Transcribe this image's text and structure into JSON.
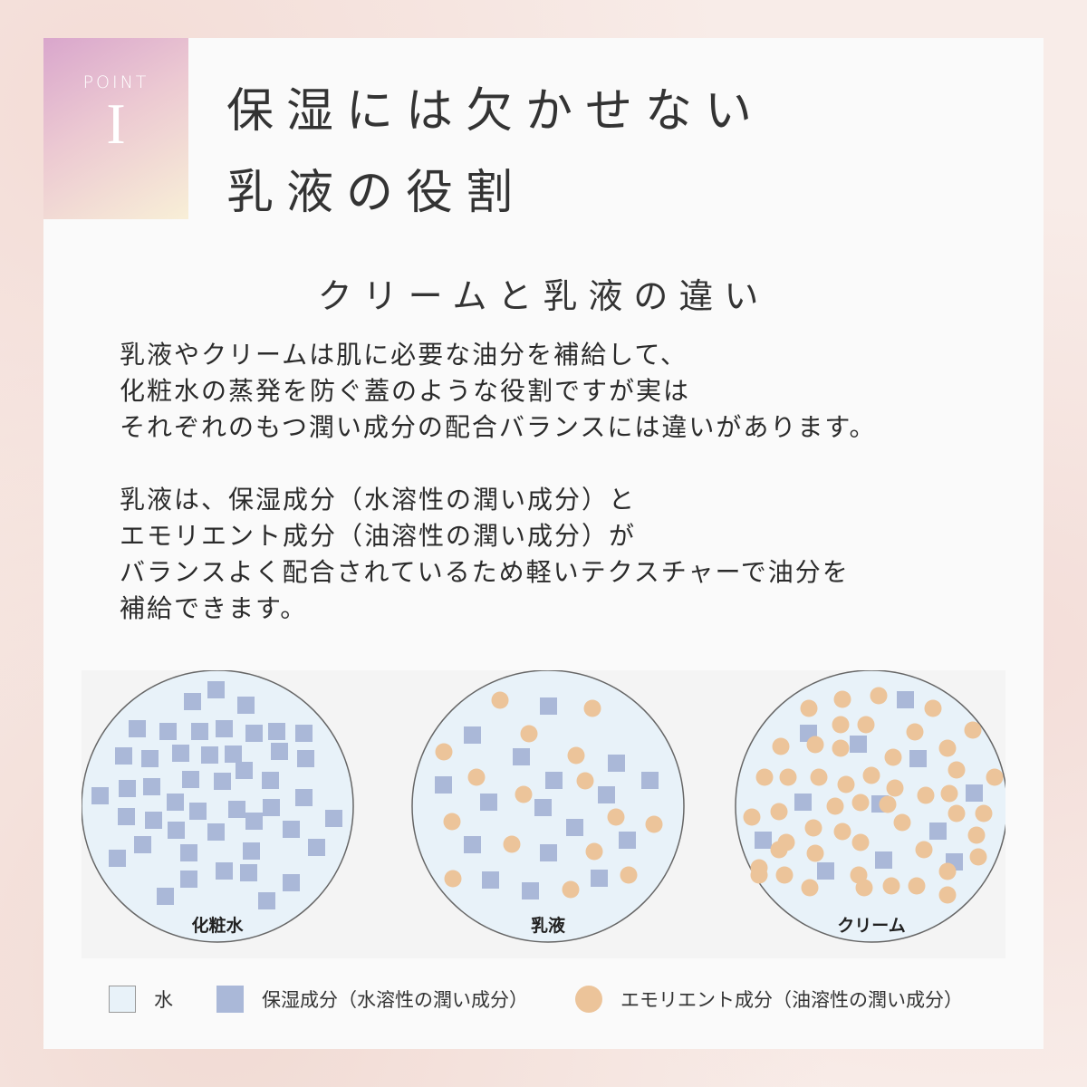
{
  "badge": {
    "label": "POINT",
    "number": "I"
  },
  "title": {
    "line1": "保湿には欠かせない",
    "line2": "乳液の役割"
  },
  "subtitle": "クリームと乳液の違い",
  "paragraphs": [
    "乳液やクリームは肌に必要な油分を補給して、\n化粧水の蒸発を防ぐ蓋のような役割ですが実は\nそれぞれのもつ潤い成分の配合バランスには違いがあります。",
    "乳液は、保湿成分（水溶性の潤い成分）と\nエモリエント成分（油溶性の潤い成分）が\nバランスよく配合されているため軽いテクスチャーで油分を\n補給できます。"
  ],
  "diagram": {
    "circles": [
      {
        "label": "化粧水"
      },
      {
        "label": "乳液"
      },
      {
        "label": "クリーム"
      }
    ],
    "colors": {
      "water": "#e8f2f9",
      "humectant": "#aab8d8",
      "emollient": "#ecc49a",
      "outline": "#666666"
    }
  },
  "legend": [
    {
      "label": "水",
      "shape": "square-outline"
    },
    {
      "label": "保湿成分（水溶性の潤い成分）",
      "shape": "square"
    },
    {
      "label": "エモリエント成分（油溶性の潤い成分）",
      "shape": "circle"
    }
  ]
}
